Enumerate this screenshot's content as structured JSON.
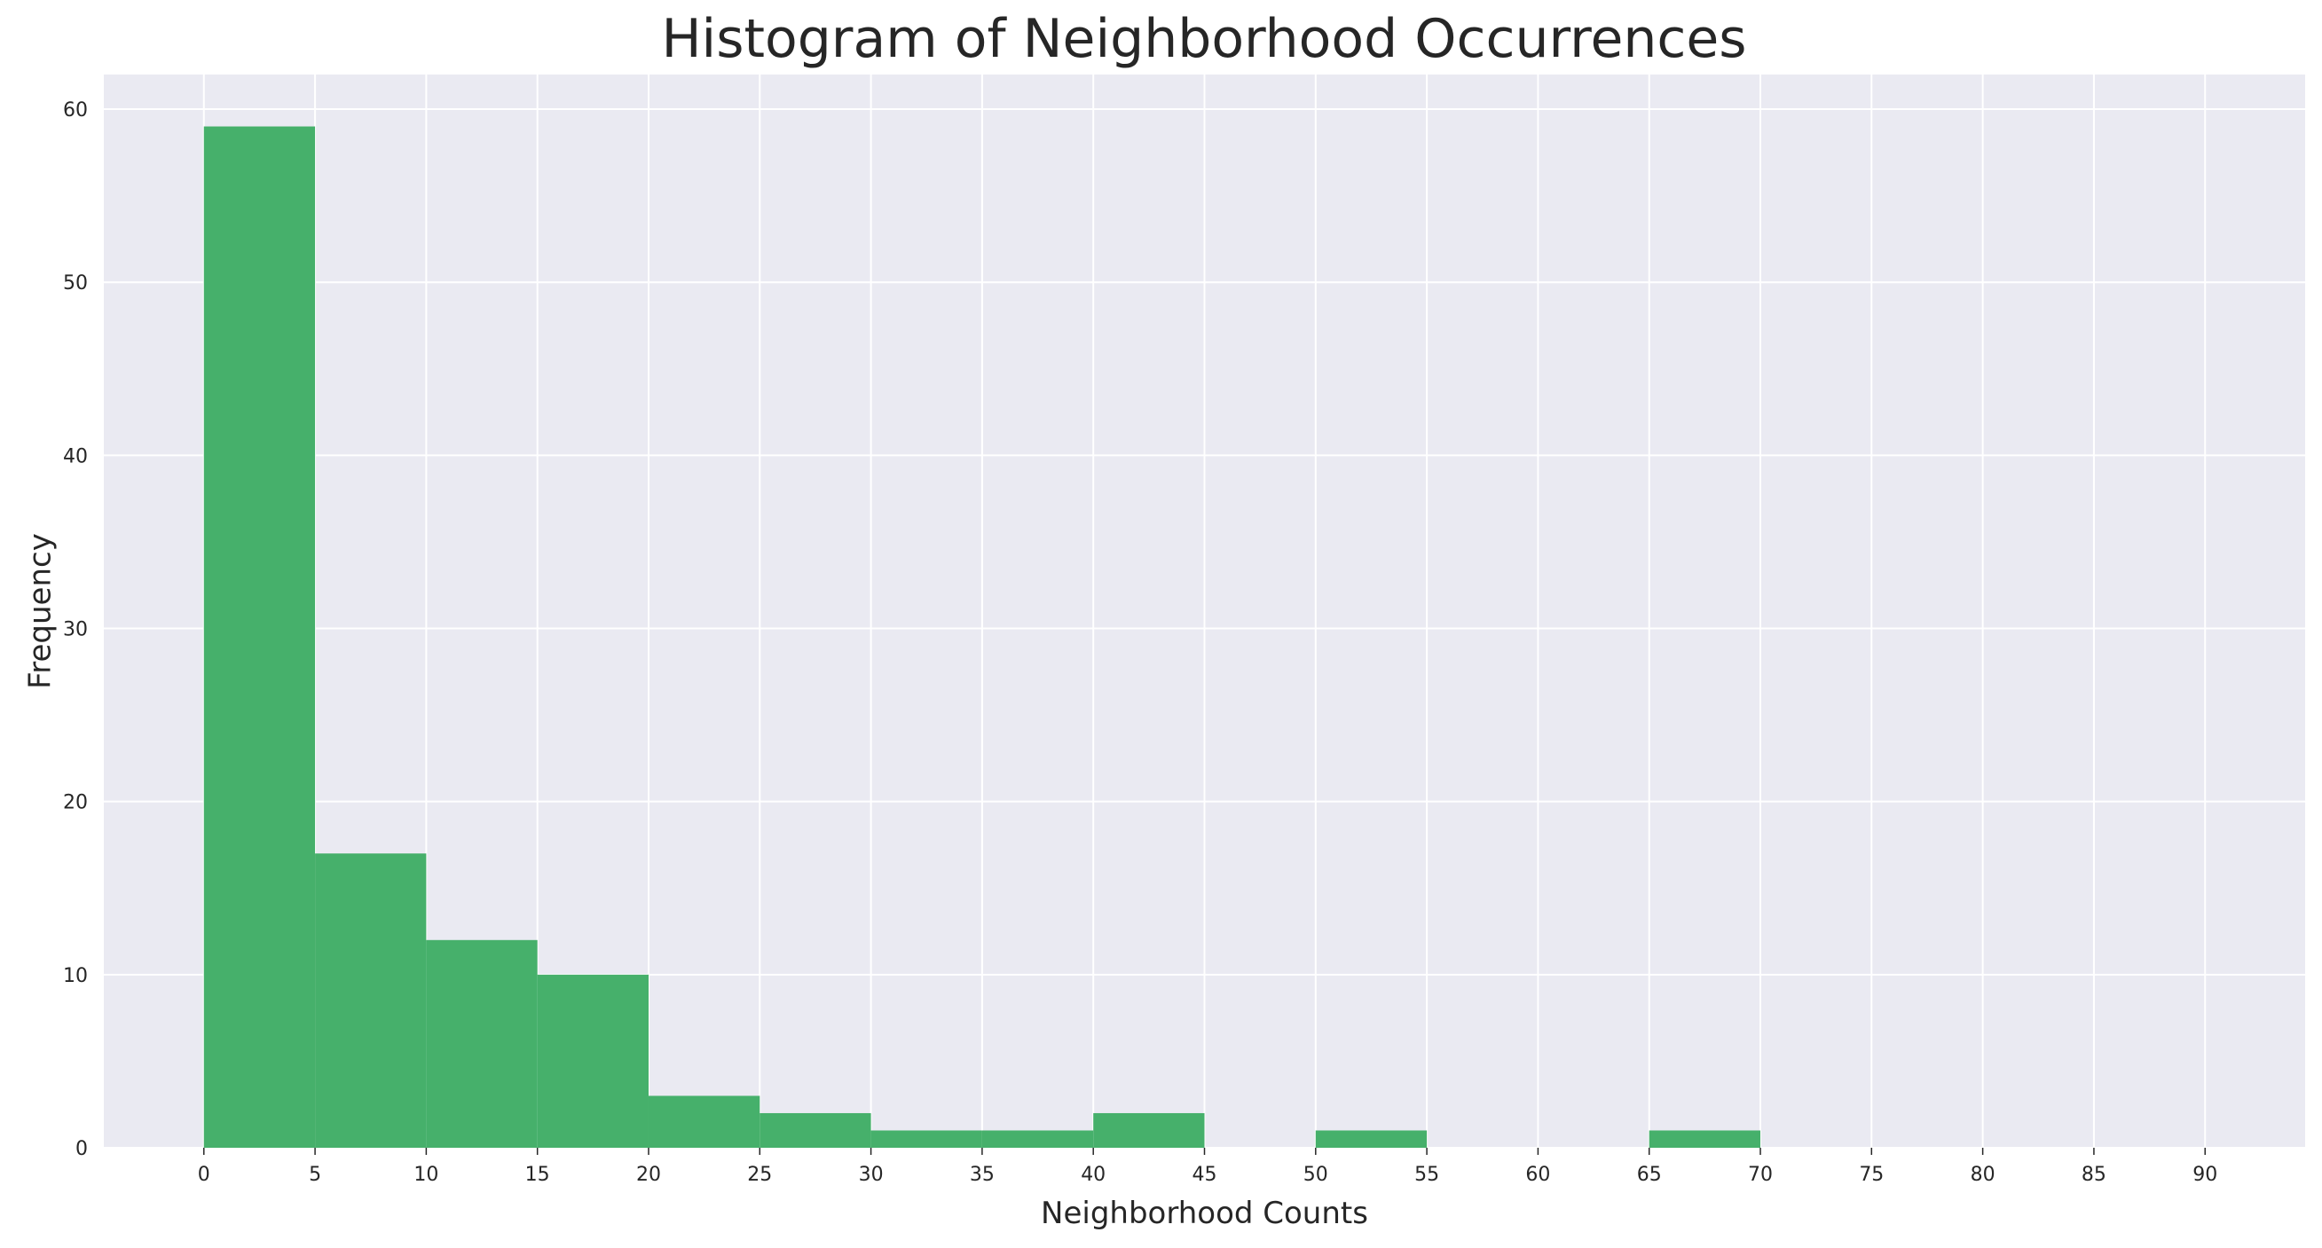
{
  "chart_data": {
    "type": "bar",
    "title": "Histogram of Neighborhood Occurrences",
    "xlabel": "Neighborhood Counts",
    "ylabel": "Frequency",
    "bin_edges": [
      0,
      5,
      10,
      15,
      20,
      25,
      30,
      35,
      40,
      45,
      50,
      55,
      60,
      65,
      70
    ],
    "values": [
      59,
      17,
      12,
      10,
      3,
      2,
      1,
      1,
      2,
      0,
      1,
      0,
      0,
      1
    ],
    "xticks": [
      0,
      5,
      10,
      15,
      20,
      25,
      30,
      35,
      40,
      45,
      50,
      55,
      60,
      65,
      70,
      75,
      80,
      85,
      90
    ],
    "xtick_labels": [
      "0",
      "5",
      "10",
      "15",
      "20",
      "25",
      "30",
      "35",
      "40",
      "45",
      "50",
      "55",
      "60",
      "65",
      "70",
      "75",
      "80",
      "85",
      "90"
    ],
    "yticks": [
      0,
      10,
      20,
      30,
      40,
      50,
      60
    ],
    "ytick_labels": [
      "0",
      "10",
      "20",
      "30",
      "40",
      "50",
      "60"
    ],
    "xlim": [
      -4.5,
      94.5
    ],
    "ylim": [
      0,
      62
    ],
    "grid": true,
    "bar_color": "#46b06b",
    "background_color": "#eaeaf2",
    "grid_color": "#ffffff"
  }
}
